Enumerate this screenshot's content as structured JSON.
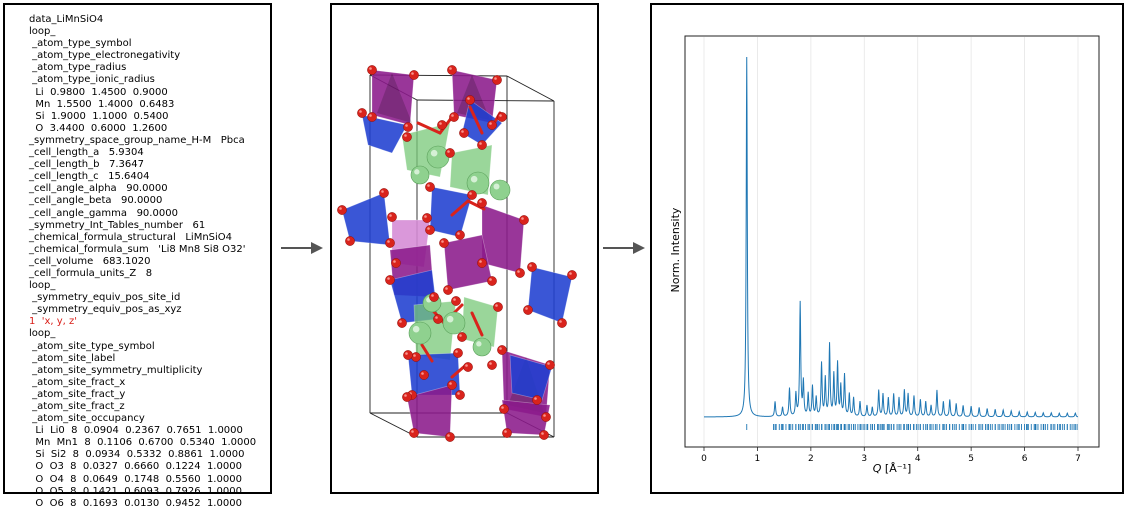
{
  "cif": {
    "lines": [
      "data_LiMnSiO4",
      "loop_",
      " _atom_type_symbol",
      " _atom_type_electronegativity",
      " _atom_type_radius",
      " _atom_type_ionic_radius",
      "  Li  0.9800  1.4500  0.9000",
      "  Mn  1.5500  1.4000  0.6483",
      "  Si  1.9000  1.1000  0.5400",
      "  O  3.4400  0.6000  1.2600",
      "_symmetry_space_group_name_H-M   Pbca",
      "_cell_length_a   5.9304",
      "_cell_length_b   7.3647",
      "_cell_length_c   15.6404",
      "_cell_angle_alpha   90.0000",
      "_cell_angle_beta   90.0000",
      "_cell_angle_gamma   90.0000",
      "_symmetry_Int_Tables_number   61",
      "_chemical_formula_structural   LiMnSiO4",
      "_chemical_formula_sum   'Li8 Mn8 Si8 O32'",
      "_cell_volume   683.1020",
      "_cell_formula_units_Z   8",
      "loop_",
      " _symmetry_equiv_pos_site_id",
      " _symmetry_equiv_pos_as_xyz",
      "1  'x, y, z'",
      "loop_",
      " _atom_site_type_symbol",
      " _atom_site_label",
      " _atom_site_symmetry_multiplicity",
      " _atom_site_fract_x",
      " _atom_site_fract_y",
      " _atom_site_fract_z",
      " _atom_site_occupancy",
      "  Li  Li0  8  0.0904  0.2367  0.7651  1.0000",
      "  Mn  Mn1  8  0.1106  0.6700  0.5340  1.0000",
      "  Si  Si2  8  0.0934  0.5332  0.8861  1.0000",
      "  O  O3  8  0.0327  0.6660  0.1224  1.0000",
      "  O  O4  8  0.0649  0.1748  0.5560  1.0000",
      "  O  O5  8  0.1421  0.6093  0.7926  1.0000",
      "  O  O6  8  0.1693  0.0130  0.9452  1.0000"
    ],
    "highlight_line_index": 25,
    "highlight_color": "#d91e18"
  },
  "structure": {
    "colors": {
      "mn_polyhedron": "#8b1a8b",
      "si_polyhedron": "#1f3fd0",
      "li_polyhedron": "#78c878",
      "li_atom": "#8fd18f",
      "o_atom": "#d9231c",
      "cell_edge": "#222222"
    }
  },
  "chart_data": {
    "type": "line",
    "title": "",
    "xlabel": "Q [Å⁻¹]",
    "ylabel": "Norm. Intensity",
    "xlim": [
      0,
      7
    ],
    "xticks": [
      "0",
      "1",
      "2",
      "3",
      "4",
      "5",
      "6",
      "7"
    ],
    "grid": "vertical",
    "line_color": "#1f77b4",
    "baseline": 0.05,
    "peaks": [
      {
        "q": 0.8,
        "h": 1.0
      },
      {
        "q": 1.33,
        "h": 0.04
      },
      {
        "q": 1.47,
        "h": 0.025
      },
      {
        "q": 1.6,
        "h": 0.075
      },
      {
        "q": 1.72,
        "h": 0.06
      },
      {
        "q": 1.8,
        "h": 0.3
      },
      {
        "q": 1.86,
        "h": 0.09
      },
      {
        "q": 1.95,
        "h": 0.06
      },
      {
        "q": 2.03,
        "h": 0.08
      },
      {
        "q": 2.1,
        "h": 0.05
      },
      {
        "q": 2.2,
        "h": 0.14
      },
      {
        "q": 2.27,
        "h": 0.1
      },
      {
        "q": 2.35,
        "h": 0.19
      },
      {
        "q": 2.43,
        "h": 0.11
      },
      {
        "q": 2.5,
        "h": 0.14
      },
      {
        "q": 2.56,
        "h": 0.08
      },
      {
        "q": 2.63,
        "h": 0.11
      },
      {
        "q": 2.72,
        "h": 0.06
      },
      {
        "q": 2.8,
        "h": 0.05
      },
      {
        "q": 2.92,
        "h": 0.04
      },
      {
        "q": 3.05,
        "h": 0.03
      },
      {
        "q": 3.15,
        "h": 0.025
      },
      {
        "q": 3.27,
        "h": 0.07
      },
      {
        "q": 3.35,
        "h": 0.06
      },
      {
        "q": 3.45,
        "h": 0.05
      },
      {
        "q": 3.55,
        "h": 0.06
      },
      {
        "q": 3.65,
        "h": 0.05
      },
      {
        "q": 3.75,
        "h": 0.07
      },
      {
        "q": 3.82,
        "h": 0.06
      },
      {
        "q": 3.93,
        "h": 0.055
      },
      {
        "q": 4.05,
        "h": 0.045
      },
      {
        "q": 4.15,
        "h": 0.04
      },
      {
        "q": 4.25,
        "h": 0.03
      },
      {
        "q": 4.36,
        "h": 0.07
      },
      {
        "q": 4.48,
        "h": 0.04
      },
      {
        "q": 4.6,
        "h": 0.045
      },
      {
        "q": 4.72,
        "h": 0.035
      },
      {
        "q": 4.85,
        "h": 0.03
      },
      {
        "q": 5.0,
        "h": 0.028
      },
      {
        "q": 5.15,
        "h": 0.025
      },
      {
        "q": 5.3,
        "h": 0.022
      },
      {
        "q": 5.45,
        "h": 0.02
      },
      {
        "q": 5.6,
        "h": 0.018
      },
      {
        "q": 5.75,
        "h": 0.016
      },
      {
        "q": 5.9,
        "h": 0.014
      },
      {
        "q": 6.05,
        "h": 0.013
      },
      {
        "q": 6.2,
        "h": 0.012
      },
      {
        "q": 6.35,
        "h": 0.011
      },
      {
        "q": 6.5,
        "h": 0.011
      },
      {
        "q": 6.65,
        "h": 0.01
      },
      {
        "q": 6.8,
        "h": 0.01
      },
      {
        "q": 6.95,
        "h": 0.01
      }
    ],
    "bragg_tick_range": [
      0.8,
      7.0
    ]
  }
}
